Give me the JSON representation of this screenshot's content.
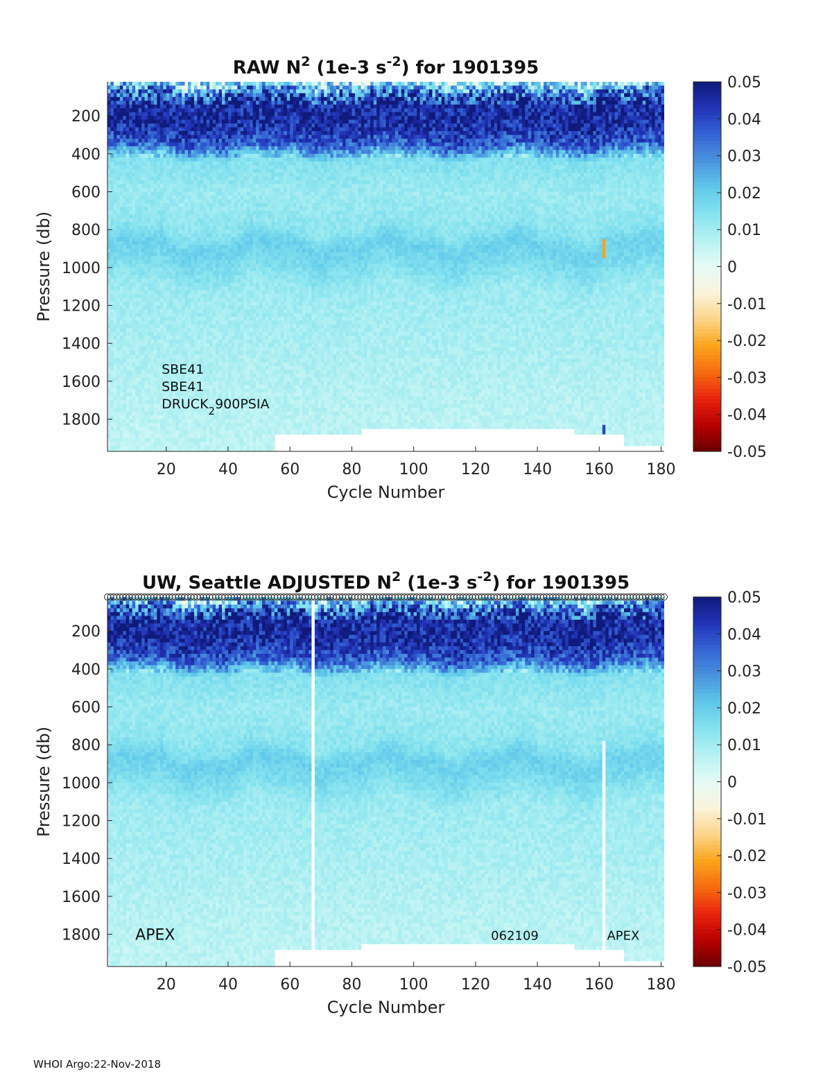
{
  "footer": "WHOI Argo:22-Nov-2018",
  "colors": {
    "colormap": [
      "#6b0000",
      "#b80000",
      "#e8240e",
      "#f76b10",
      "#fba51a",
      "#fcd58a",
      "#fbf3dc",
      "#e6fbf6",
      "#b7f2f3",
      "#86e3ef",
      "#5fc8ea",
      "#4a93de",
      "#3465d4",
      "#2233b8",
      "#0f1a7a"
    ],
    "missing": "#ffffff"
  },
  "chart_data": [
    {
      "type": "heatmap",
      "title_parts": [
        "RAW N",
        "2",
        " (1e-3 s",
        "-2",
        ") for 1901395"
      ],
      "xlabel": "Cycle Number",
      "ylabel": "Pressure (db)",
      "xlim": [
        1,
        181
      ],
      "ylim": [
        1970,
        20
      ],
      "xticks": [
        20,
        40,
        60,
        80,
        100,
        120,
        140,
        160,
        180
      ],
      "yticks": [
        200,
        400,
        600,
        800,
        1000,
        1200,
        1400,
        1600,
        1800
      ],
      "clim": [
        -0.05,
        0.05
      ],
      "cticks": [
        "0.05",
        "0.04",
        "0.03",
        "0.02",
        "0.01",
        "0",
        "-0.01",
        "-0.02",
        "-0.03",
        "-0.04",
        "-0.05"
      ],
      "profile": [
        {
          "p": 20,
          "v": 0.012
        },
        {
          "p": 60,
          "v": 0.03
        },
        {
          "p": 120,
          "v": 0.045
        },
        {
          "p": 250,
          "v": 0.045
        },
        {
          "p": 350,
          "v": 0.035
        },
        {
          "p": 420,
          "v": 0.015
        },
        {
          "p": 600,
          "v": 0.011
        },
        {
          "p": 780,
          "v": 0.013
        },
        {
          "p": 880,
          "v": 0.019
        },
        {
          "p": 980,
          "v": 0.016
        },
        {
          "p": 1100,
          "v": 0.011
        },
        {
          "p": 1400,
          "v": 0.009
        },
        {
          "p": 1700,
          "v": 0.007
        },
        {
          "p": 1970,
          "v": 0.006
        }
      ],
      "max_pressure_segments": [
        {
          "from": 1,
          "to": 55,
          "p": 1970
        },
        {
          "from": 55,
          "to": 68,
          "p": 1880
        },
        {
          "from": 68,
          "to": 77,
          "p": 1880
        },
        {
          "from": 77,
          "to": 83,
          "p": 1880
        },
        {
          "from": 83,
          "to": 152,
          "p": 1850
        },
        {
          "from": 152,
          "to": 168,
          "p": 1880
        },
        {
          "from": 168,
          "to": 181,
          "p": 1940
        }
      ],
      "anomalies": [
        {
          "cycle": 161,
          "p_from": 850,
          "p_to": 950,
          "v": -0.022
        },
        {
          "cycle": 161,
          "p_from": 1830,
          "p_to": 1880,
          "v": 0.04
        }
      ],
      "gap_columns": [],
      "sensor_labels": [
        "SBE41",
        "SBE41",
        "DRUCK"
      ],
      "sensor_sub": "2",
      "sensor_tail": "900PSIA",
      "bottom_labels": []
    },
    {
      "type": "heatmap",
      "title_parts": [
        "UW, Seattle  ADJUSTED N",
        "2",
        " (1e-3 s",
        "-2",
        ") for 1901395"
      ],
      "xlabel": "Cycle Number",
      "ylabel": "Pressure (db)",
      "xlim": [
        1,
        181
      ],
      "ylim": [
        1970,
        20
      ],
      "xticks": [
        20,
        40,
        60,
        80,
        100,
        120,
        140,
        160,
        180
      ],
      "yticks": [
        200,
        400,
        600,
        800,
        1000,
        1200,
        1400,
        1600,
        1800
      ],
      "clim": [
        -0.05,
        0.05
      ],
      "cticks": [
        "0.05",
        "0.04",
        "0.03",
        "0.02",
        "0.01",
        "0",
        "-0.01",
        "-0.02",
        "-0.03",
        "-0.04",
        "-0.05"
      ],
      "profile": [
        {
          "p": 20,
          "v": 0.012
        },
        {
          "p": 60,
          "v": 0.03
        },
        {
          "p": 120,
          "v": 0.045
        },
        {
          "p": 250,
          "v": 0.045
        },
        {
          "p": 350,
          "v": 0.035
        },
        {
          "p": 420,
          "v": 0.015
        },
        {
          "p": 600,
          "v": 0.011
        },
        {
          "p": 780,
          "v": 0.013
        },
        {
          "p": 880,
          "v": 0.019
        },
        {
          "p": 980,
          "v": 0.016
        },
        {
          "p": 1100,
          "v": 0.011
        },
        {
          "p": 1400,
          "v": 0.009
        },
        {
          "p": 1700,
          "v": 0.007
        },
        {
          "p": 1970,
          "v": 0.006
        }
      ],
      "max_pressure_segments": [
        {
          "from": 1,
          "to": 55,
          "p": 1970
        },
        {
          "from": 55,
          "to": 68,
          "p": 1880
        },
        {
          "from": 68,
          "to": 77,
          "p": 1880
        },
        {
          "from": 77,
          "to": 83,
          "p": 1880
        },
        {
          "from": 83,
          "to": 152,
          "p": 1850
        },
        {
          "from": 152,
          "to": 168,
          "p": 1880
        },
        {
          "from": 168,
          "to": 181,
          "p": 1940
        }
      ],
      "anomalies": [],
      "gap_columns": [
        {
          "cycle": 67,
          "p_from": 20,
          "p_to": 1970
        },
        {
          "cycle": 161,
          "p_from": 780,
          "p_to": 1970
        }
      ],
      "markers_row": {
        "p": 20,
        "from": 1,
        "to": 181
      },
      "sensor_labels": [],
      "bottom_labels": [
        {
          "text": "APEX",
          "cycle": 10,
          "p": 1800,
          "size": 22
        },
        {
          "text": "062109",
          "cycle": 125,
          "p": 1800,
          "size": 18
        },
        {
          "text": "APEX",
          "cycle": 162.5,
          "p": 1800,
          "size": 18
        }
      ]
    }
  ]
}
